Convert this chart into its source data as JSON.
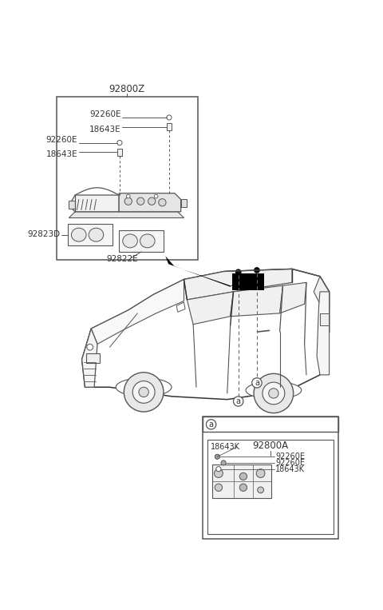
{
  "bg": "#ffffff",
  "lc": "#555555",
  "lc_dark": "#333333",
  "title_Z": "92800Z",
  "title_A": "92800A",
  "lbl_92260E": "92260E",
  "lbl_18643E": "18643E",
  "lbl_92823D": "92823D",
  "lbl_92822E": "92822E",
  "lbl_18643K": "18643K",
  "lbl_a": "a",
  "fs": 7.5,
  "fs_title": 8.5,
  "fs_a": 7
}
